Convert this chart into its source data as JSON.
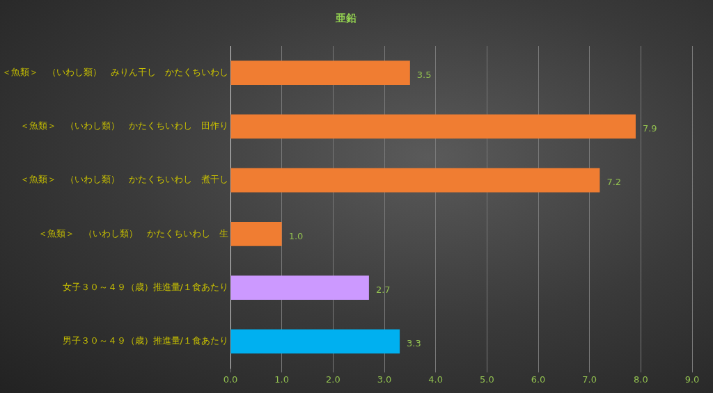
{
  "chart_data": {
    "type": "bar",
    "orientation": "horizontal",
    "title": "亜鉛",
    "categories": [
      "＜魚類＞　（いわし類）　みりん干し　かたくちいわし",
      "＜魚類＞　（いわし類）　かたくちいわし　田作り",
      "＜魚類＞　（いわし類）　かたくちいわし　煮干し",
      "＜魚類＞　（いわし類）　かたくちいわし　生",
      "女子３０～４９（歳）推進量/１食あたり",
      "男子３０～４９（歳）推進量/１食あたり"
    ],
    "values": [
      3.5,
      7.9,
      7.2,
      1.0,
      2.7,
      3.3
    ],
    "colors": [
      "#f07d32",
      "#f07d32",
      "#f07d32",
      "#f07d32",
      "#cc99ff",
      "#00b0f0"
    ],
    "value_labels": [
      "3.5",
      "7.9",
      "7.2",
      "1.0",
      "2.7",
      "3.3"
    ],
    "xlim": [
      0,
      9
    ],
    "xticks": [
      {
        "value": 0,
        "label": "0.0"
      },
      {
        "value": 1,
        "label": "1.0"
      },
      {
        "value": 2,
        "label": "2.0"
      },
      {
        "value": 3,
        "label": "3.0"
      },
      {
        "value": 4,
        "label": "4.0"
      },
      {
        "value": 5,
        "label": "5.0"
      },
      {
        "value": 6,
        "label": "6.0"
      },
      {
        "value": 7,
        "label": "7.0"
      },
      {
        "value": 8,
        "label": "8.0"
      },
      {
        "value": 9,
        "label": "9.0"
      }
    ],
    "grid": "x",
    "legend": false
  }
}
